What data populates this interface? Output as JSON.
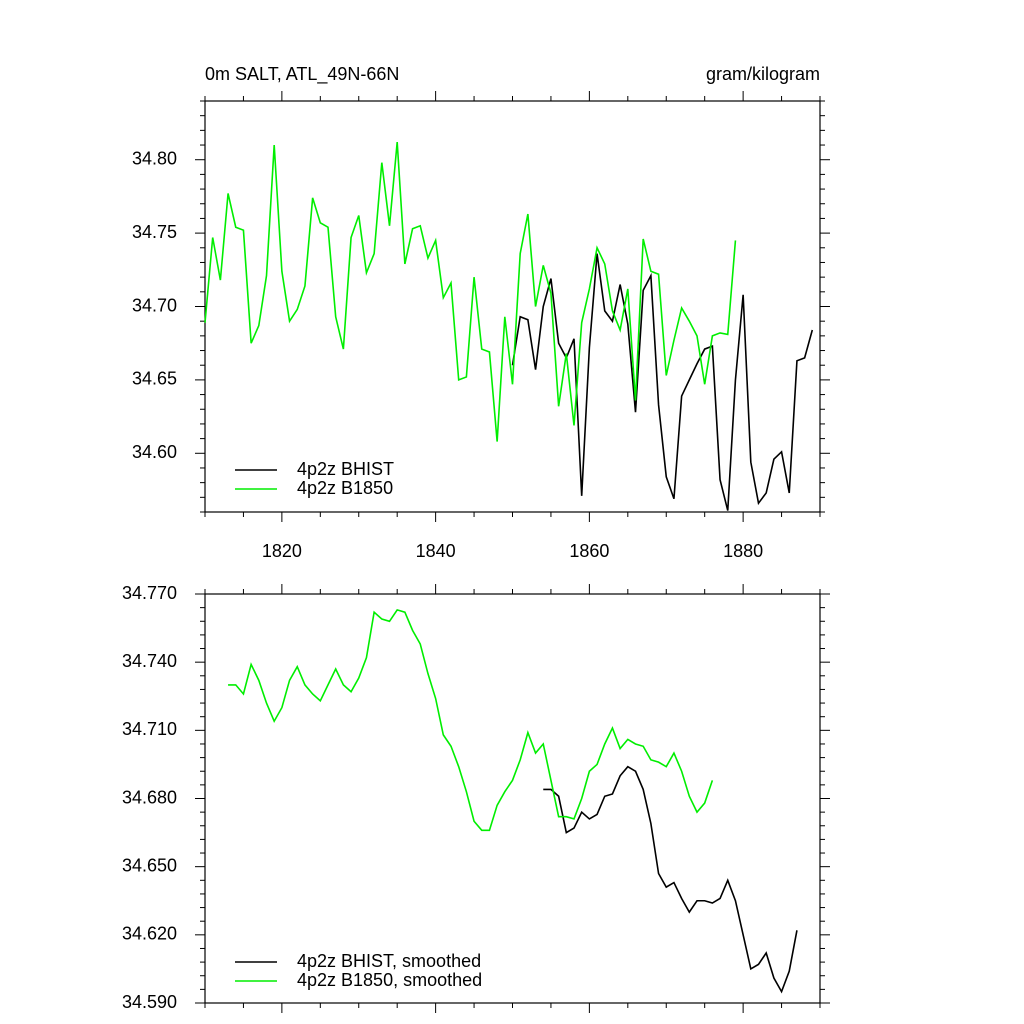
{
  "chart_data": [
    {
      "type": "line",
      "title": "0m SALT, ATL_49N-66N",
      "units": "gram/kilogram",
      "x": [
        1810,
        1811,
        1812,
        1813,
        1814,
        1815,
        1816,
        1817,
        1818,
        1819,
        1820,
        1821,
        1822,
        1823,
        1824,
        1825,
        1826,
        1827,
        1828,
        1829,
        1830,
        1831,
        1832,
        1833,
        1834,
        1835,
        1836,
        1837,
        1838,
        1839,
        1840,
        1841,
        1842,
        1843,
        1844,
        1845,
        1846,
        1847,
        1848,
        1849,
        1850,
        1851,
        1852,
        1853,
        1854,
        1855,
        1856,
        1857,
        1858,
        1859,
        1860,
        1861,
        1862,
        1863,
        1864,
        1865,
        1866,
        1867,
        1868,
        1869,
        1870,
        1871,
        1872,
        1873,
        1874,
        1875,
        1876,
        1877,
        1878,
        1879,
        1880,
        1881,
        1882,
        1883,
        1884,
        1885,
        1886,
        1887,
        1888,
        1889
      ],
      "series": [
        {
          "name": "4p2z BHIST",
          "color": "#000000",
          "values": [
            null,
            null,
            null,
            null,
            null,
            null,
            null,
            null,
            null,
            null,
            null,
            null,
            null,
            null,
            null,
            null,
            null,
            null,
            null,
            null,
            null,
            null,
            null,
            null,
            null,
            null,
            null,
            null,
            null,
            null,
            null,
            null,
            null,
            null,
            null,
            null,
            null,
            null,
            null,
            null,
            34.66,
            34.693,
            34.691,
            34.657,
            34.7,
            34.719,
            34.675,
            34.665,
            34.678,
            34.571,
            34.672,
            34.736,
            34.697,
            34.69,
            34.715,
            34.688,
            34.628,
            34.711,
            34.721,
            34.633,
            34.584,
            34.569,
            34.639,
            34.65,
            34.661,
            34.671,
            34.673,
            34.582,
            34.561,
            34.65,
            34.708,
            34.594,
            34.566,
            34.573,
            34.596,
            34.601,
            34.573,
            34.663,
            34.665,
            34.684
          ]
        },
        {
          "name": "4p2z B1850",
          "color": "#00ee00",
          "values": [
            34.689,
            34.747,
            34.718,
            34.777,
            34.754,
            34.752,
            34.675,
            34.687,
            34.721,
            34.81,
            34.724,
            34.69,
            34.698,
            34.714,
            34.774,
            34.757,
            34.754,
            34.693,
            34.671,
            34.747,
            34.762,
            34.723,
            34.736,
            34.798,
            34.755,
            34.812,
            34.729,
            34.753,
            34.755,
            34.733,
            34.745,
            34.706,
            34.716,
            34.65,
            34.652,
            34.72,
            34.671,
            34.669,
            34.608,
            34.693,
            34.647,
            34.736,
            34.763,
            34.7,
            34.728,
            34.709,
            34.632,
            34.668,
            34.619,
            34.689,
            34.712,
            34.74,
            34.729,
            34.697,
            34.684,
            34.712,
            34.636,
            34.746,
            34.724,
            34.722,
            34.653,
            34.677,
            34.699,
            34.69,
            34.68,
            34.647,
            34.68,
            34.682,
            34.681,
            34.745,
            null,
            null,
            null,
            null,
            null,
            null,
            null,
            null,
            null,
            null
          ]
        }
      ],
      "xlim": [
        1810,
        1890
      ],
      "xticks": [
        1820,
        1840,
        1860,
        1880
      ],
      "ylim": [
        34.56,
        34.84
      ],
      "yticks": [
        {
          "value": 34.6,
          "label": "34.60"
        },
        34.65,
        {
          "value": 34.7,
          "label": "34.70"
        },
        34.75,
        {
          "value": 34.8,
          "label": "34.80"
        }
      ],
      "legend": "lower left"
    },
    {
      "type": "line",
      "x": [
        1813,
        1814,
        1815,
        1816,
        1817,
        1818,
        1819,
        1820,
        1821,
        1822,
        1823,
        1824,
        1825,
        1826,
        1827,
        1828,
        1829,
        1830,
        1831,
        1832,
        1833,
        1834,
        1835,
        1836,
        1837,
        1838,
        1839,
        1840,
        1841,
        1842,
        1843,
        1844,
        1845,
        1846,
        1847,
        1848,
        1849,
        1850,
        1851,
        1852,
        1853,
        1854,
        1855,
        1856,
        1857,
        1858,
        1859,
        1860,
        1861,
        1862,
        1863,
        1864,
        1865,
        1866,
        1867,
        1868,
        1869,
        1870,
        1871,
        1872,
        1873,
        1874,
        1875,
        1876,
        1877,
        1878,
        1879,
        1880,
        1881,
        1882,
        1883,
        1884,
        1885,
        1886,
        1887
      ],
      "series": [
        {
          "name": "4p2z BHIST, smoothed",
          "color": "#000000",
          "values": [
            null,
            null,
            null,
            null,
            null,
            null,
            null,
            null,
            null,
            null,
            null,
            null,
            null,
            null,
            null,
            null,
            null,
            null,
            null,
            null,
            null,
            null,
            null,
            null,
            null,
            null,
            null,
            null,
            null,
            null,
            null,
            null,
            null,
            null,
            null,
            null,
            null,
            null,
            null,
            null,
            null,
            34.684,
            34.684,
            34.681,
            34.665,
            34.667,
            34.674,
            34.671,
            34.673,
            34.681,
            34.682,
            34.69,
            34.694,
            34.692,
            34.684,
            34.669,
            34.647,
            34.641,
            34.643,
            34.636,
            34.63,
            34.635,
            34.635,
            34.634,
            34.636,
            34.644,
            34.635,
            34.62,
            34.605,
            34.607,
            34.612,
            34.601,
            34.595,
            34.604,
            34.622
          ]
        },
        {
          "name": "4p2z B1850, smoothed",
          "color": "#00ee00",
          "values": [
            34.73,
            34.73,
            34.726,
            34.739,
            34.732,
            34.722,
            34.714,
            34.72,
            34.732,
            34.738,
            34.73,
            34.726,
            34.723,
            34.73,
            34.737,
            34.73,
            34.727,
            34.733,
            34.742,
            34.762,
            34.759,
            34.758,
            34.763,
            34.762,
            34.754,
            34.748,
            34.735,
            34.724,
            34.708,
            34.703,
            34.694,
            34.683,
            34.67,
            34.666,
            34.666,
            34.677,
            34.683,
            34.688,
            34.697,
            34.709,
            34.7,
            34.704,
            34.688,
            34.672,
            34.672,
            34.671,
            34.68,
            34.692,
            34.695,
            34.704,
            34.711,
            34.702,
            34.706,
            34.704,
            34.703,
            34.697,
            34.696,
            34.694,
            34.7,
            34.692,
            34.681,
            34.674,
            34.678,
            34.688,
            null,
            null,
            null,
            null,
            null,
            null,
            null,
            null,
            null,
            null,
            null
          ]
        }
      ],
      "xlim": [
        1810,
        1890
      ],
      "xticks": [
        1820,
        1840,
        1860,
        1880
      ],
      "ylim": [
        34.59,
        34.77
      ],
      "yticks": [
        {
          "value": 34.59,
          "label": "34.590"
        },
        {
          "value": 34.62,
          "label": "34.620"
        },
        {
          "value": 34.65,
          "label": "34.650"
        },
        {
          "value": 34.68,
          "label": "34.680"
        },
        {
          "value": 34.71,
          "label": "34.710"
        },
        {
          "value": 34.74,
          "label": "34.740"
        },
        {
          "value": 34.77,
          "label": "34.770"
        }
      ],
      "legend": "lower left"
    }
  ]
}
